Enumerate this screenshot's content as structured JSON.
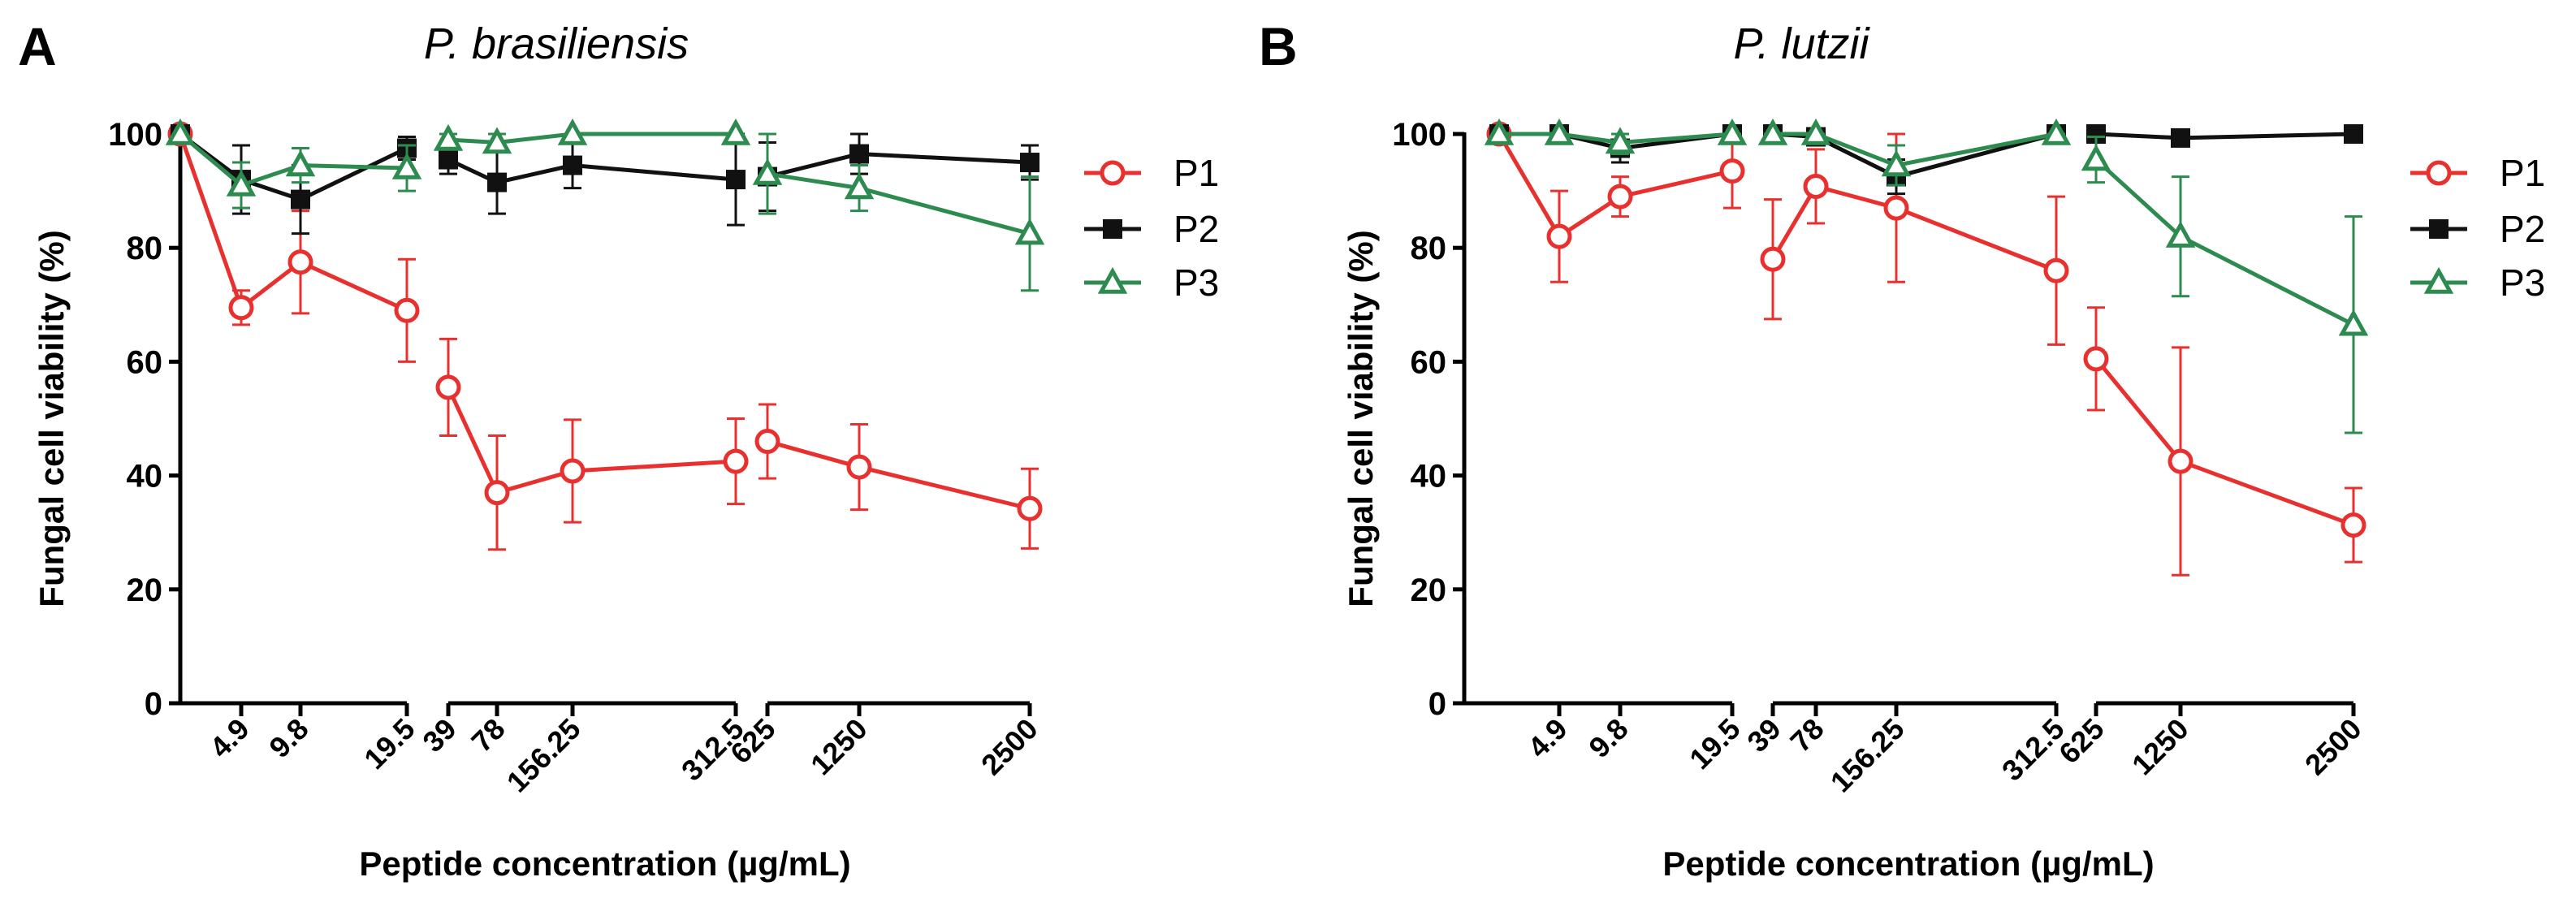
{
  "colors": {
    "P1": "#e8312f",
    "P2": "#111111",
    "P3": "#2e8b4f"
  },
  "x_axis_label": "Peptide concentration (µg/mL)",
  "legend": [
    "P1",
    "P2",
    "P3"
  ],
  "chart_data": [
    {
      "panel": "A",
      "type": "line",
      "title": "P. brasiliensis",
      "ylabel": "Fungal cell viability (%)",
      "xlabel": "Peptide concentration (µg/mL)",
      "ylim": [
        0,
        100
      ],
      "yticks": [
        0,
        20,
        40,
        60,
        80,
        100
      ],
      "segments": [
        {
          "ticks": [
            "4.9",
            "9.8",
            "19.5"
          ]
        },
        {
          "ticks": [
            "39",
            "78",
            "156.25",
            "312.5"
          ]
        },
        {
          "ticks": [
            "625",
            "1250",
            "2500"
          ]
        }
      ],
      "series": [
        {
          "name": "P1",
          "marker": "circle",
          "segments": [
            [
              {
                "x": "0",
                "y": 100,
                "err": 0
              },
              {
                "x": "4.9",
                "y": 69.5,
                "err": 3
              },
              {
                "x": "9.8",
                "y": 77.5,
                "err": 9
              },
              {
                "x": "19.5",
                "y": 69,
                "err": 9
              }
            ],
            [
              {
                "x": "39",
                "y": 55.5,
                "err": 8.5
              },
              {
                "x": "78",
                "y": 37,
                "err": 10
              },
              {
                "x": "156.25",
                "y": 40.8,
                "err": 9
              },
              {
                "x": "312.5",
                "y": 42.5,
                "err": 7.5
              }
            ],
            [
              {
                "x": "625",
                "y": 46,
                "err": 6.5
              },
              {
                "x": "1250",
                "y": 41.5,
                "err": 7.5
              },
              {
                "x": "2500",
                "y": 34.2,
                "err": 7
              }
            ]
          ]
        },
        {
          "name": "P2",
          "marker": "square",
          "segments": [
            [
              {
                "x": "0",
                "y": 100,
                "err": 0
              },
              {
                "x": "4.9",
                "y": 92,
                "err": 6
              },
              {
                "x": "9.8",
                "y": 88.5,
                "err": 6
              },
              {
                "x": "19.5",
                "y": 97.5,
                "err": 2
              }
            ],
            [
              {
                "x": "39",
                "y": 95.5,
                "err": 2.5
              },
              {
                "x": "78",
                "y": 91.5,
                "err": 5.5
              },
              {
                "x": "156.25",
                "y": 94.5,
                "err": 4
              },
              {
                "x": "312.5",
                "y": 92,
                "err": 8
              }
            ],
            [
              {
                "x": "625",
                "y": 92.5,
                "err": 6
              },
              {
                "x": "1250",
                "y": 96.5,
                "err": 3.5
              },
              {
                "x": "2500",
                "y": 95,
                "err": 3
              }
            ]
          ]
        },
        {
          "name": "P3",
          "marker": "triangle",
          "segments": [
            [
              {
                "x": "0",
                "y": 100,
                "err": 0
              },
              {
                "x": "4.9",
                "y": 91,
                "err": 4
              },
              {
                "x": "9.8",
                "y": 94.5,
                "err": 3
              },
              {
                "x": "19.5",
                "y": 94,
                "err": 4
              }
            ],
            [
              {
                "x": "39",
                "y": 99,
                "err": 1.5
              },
              {
                "x": "78",
                "y": 98.5,
                "err": 1.5
              },
              {
                "x": "156.25",
                "y": 100,
                "err": 0
              },
              {
                "x": "312.5",
                "y": 100,
                "err": 0
              }
            ],
            [
              {
                "x": "625",
                "y": 93,
                "err": 7
              },
              {
                "x": "1250",
                "y": 90.5,
                "err": 4
              },
              {
                "x": "2500",
                "y": 82.5,
                "err": 10
              }
            ]
          ]
        }
      ]
    },
    {
      "panel": "B",
      "type": "line",
      "title": "P. lutzii",
      "ylabel": "Fungal cell viability (%)",
      "xlabel": "Peptide concentration (µg/mL)",
      "ylim": [
        0,
        100
      ],
      "yticks": [
        0,
        20,
        40,
        60,
        80,
        100
      ],
      "segments": [
        {
          "ticks": [
            "4.9",
            "9.8",
            "19.5"
          ]
        },
        {
          "ticks": [
            "39",
            "78",
            "156.25",
            "312.5"
          ]
        },
        {
          "ticks": [
            "625",
            "1250",
            "2500"
          ]
        }
      ],
      "series": [
        {
          "name": "P1",
          "marker": "circle",
          "segments": [
            [
              {
                "x": "0",
                "y": 100,
                "err": 0
              },
              {
                "x": "4.9",
                "y": 82,
                "err": 8
              },
              {
                "x": "9.8",
                "y": 89,
                "err": 3.5
              },
              {
                "x": "19.5",
                "y": 93.5,
                "err": 6.5
              }
            ],
            [
              {
                "x": "39",
                "y": 78,
                "err": 10.5
              },
              {
                "x": "78",
                "y": 90.8,
                "err": 6.5
              },
              {
                "x": "156.25",
                "y": 87,
                "err": 13
              },
              {
                "x": "312.5",
                "y": 76,
                "err": 13
              }
            ],
            [
              {
                "x": "625",
                "y": 60.5,
                "err": 9
              },
              {
                "x": "1250",
                "y": 42.5,
                "err": 20
              },
              {
                "x": "2500",
                "y": 31.3,
                "err": 6.5
              }
            ]
          ]
        },
        {
          "name": "P2",
          "marker": "square",
          "segments": [
            [
              {
                "x": "0",
                "y": 100,
                "err": 0
              },
              {
                "x": "4.9",
                "y": 100,
                "err": 1
              },
              {
                "x": "9.8",
                "y": 97.5,
                "err": 2.5
              },
              {
                "x": "19.5",
                "y": 100,
                "err": 1
              }
            ],
            [
              {
                "x": "39",
                "y": 100,
                "err": 1
              },
              {
                "x": "78",
                "y": 99.5,
                "err": 1
              },
              {
                "x": "156.25",
                "y": 92.5,
                "err": 3
              },
              {
                "x": "312.5",
                "y": 100,
                "err": 1
              }
            ],
            [
              {
                "x": "625",
                "y": 100,
                "err": 0
              },
              {
                "x": "1250",
                "y": 99.3,
                "err": 0
              },
              {
                "x": "2500",
                "y": 100,
                "err": 0
              }
            ]
          ]
        },
        {
          "name": "P3",
          "marker": "triangle",
          "segments": [
            [
              {
                "x": "0",
                "y": 100,
                "err": 0
              },
              {
                "x": "4.9",
                "y": 100,
                "err": 1
              },
              {
                "x": "9.8",
                "y": 98.5,
                "err": 2
              },
              {
                "x": "19.5",
                "y": 100,
                "err": 1
              }
            ],
            [
              {
                "x": "39",
                "y": 100,
                "err": 1.5
              },
              {
                "x": "78",
                "y": 100,
                "err": 1.5
              },
              {
                "x": "156.25",
                "y": 94.5,
                "err": 3.5
              },
              {
                "x": "312.5",
                "y": 100,
                "err": 1
              }
            ],
            [
              {
                "x": "625",
                "y": 95.5,
                "err": 4
              },
              {
                "x": "1250",
                "y": 82,
                "err": 10.5
              },
              {
                "x": "2500",
                "y": 66.5,
                "err": 19
              }
            ]
          ]
        }
      ]
    }
  ]
}
